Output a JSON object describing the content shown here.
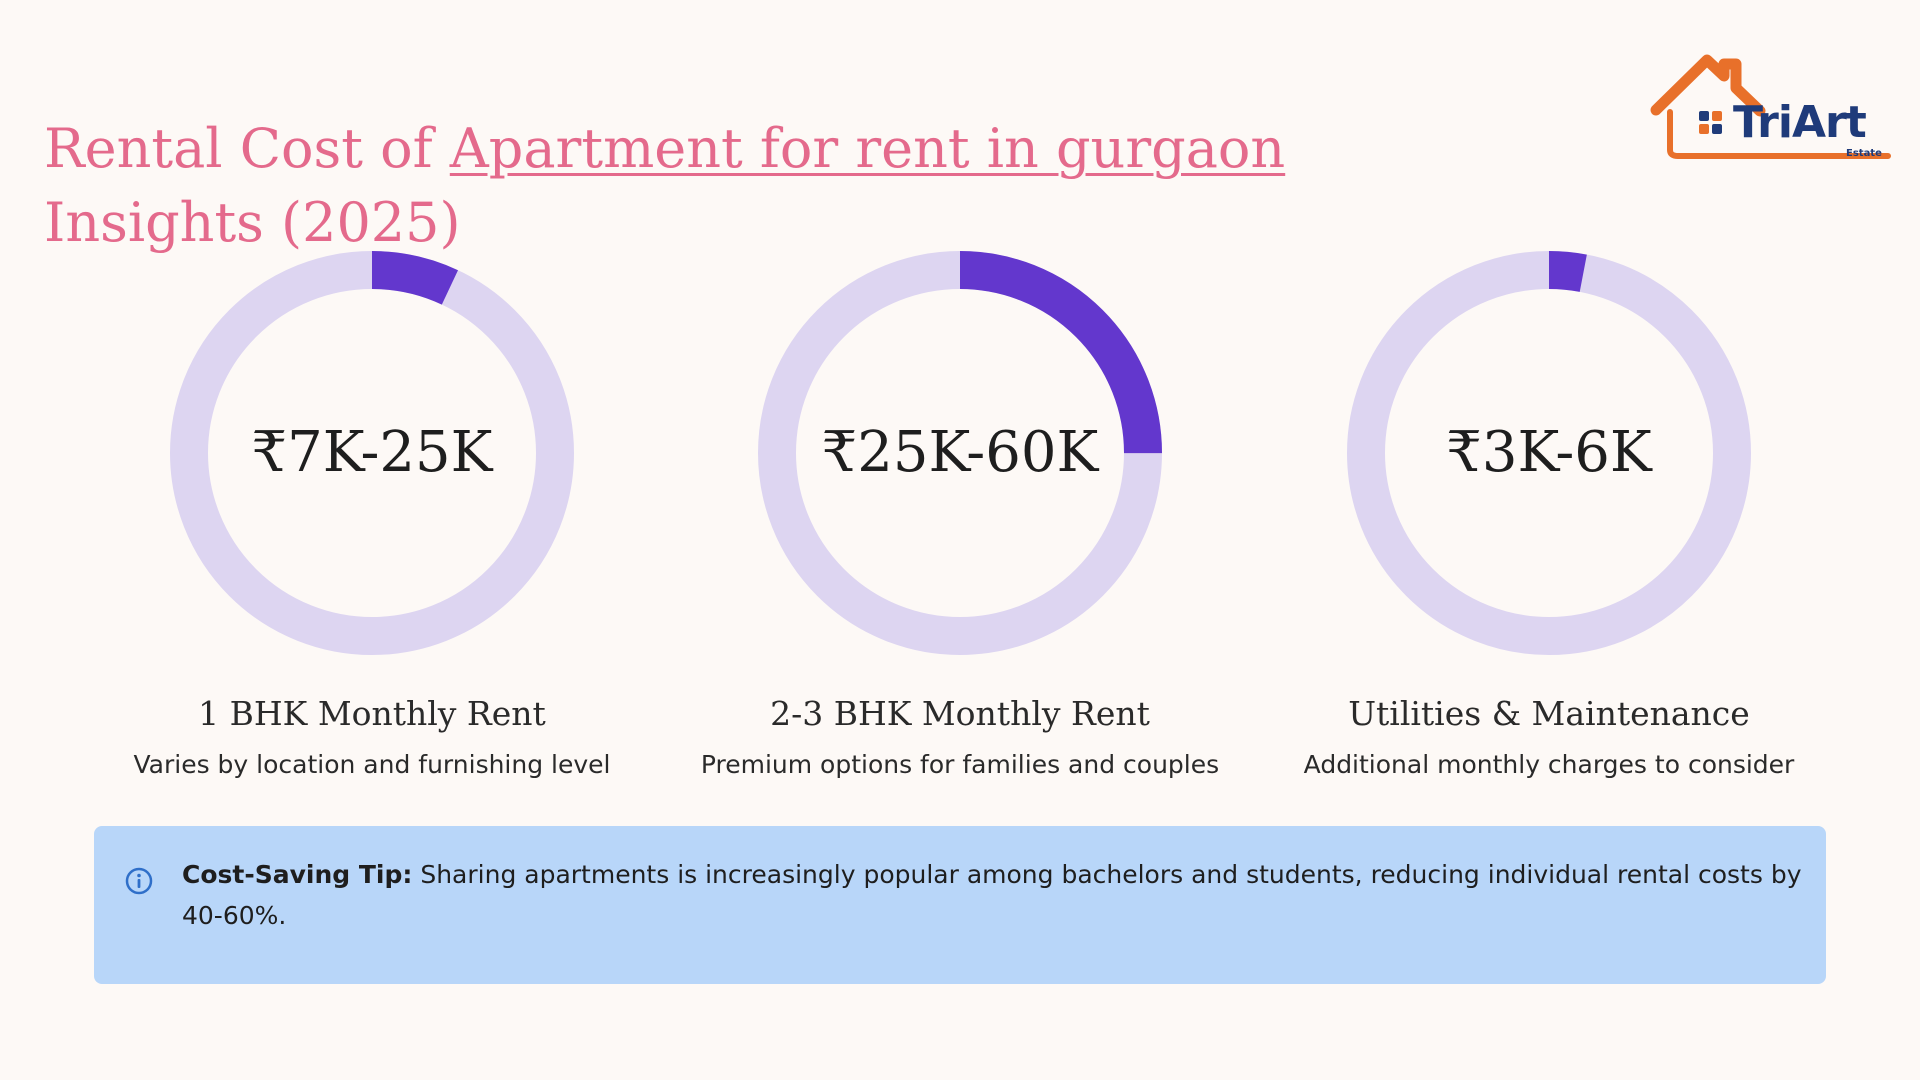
{
  "header": {
    "title_prefix": "Rental Cost of ",
    "title_link": "Apartment for rent in gurgaon ",
    "title_suffix": "Insights (2025)"
  },
  "logo": {
    "name": "TriArt",
    "subtitle": "Estate",
    "icon": "house-icon"
  },
  "colors": {
    "ring_track": "#ddd5f1",
    "ring_fill": "#6337cd",
    "title": "#e46a8c",
    "tip_background": "#b8d6f9",
    "logo_roof": "#e8702a",
    "logo_text": "#1f3b7a"
  },
  "stats": [
    {
      "value": "₹7K-25K",
      "label": "1 BHK Monthly Rent",
      "description": "Varies by location and furnishing level",
      "progress": 0.07
    },
    {
      "value": "₹25K-60K",
      "label": "2-3 BHK Monthly Rent",
      "description": "Premium options for families and couples",
      "progress": 0.25
    },
    {
      "value": "₹3K-6K",
      "label": "Utilities & Maintenance",
      "description": "Additional monthly charges to consider",
      "progress": 0.03
    }
  ],
  "tip": {
    "icon": "info-icon",
    "label": "Cost-Saving Tip:",
    "text": " Sharing apartments is increasingly popular among bachelors and students, reducing individual rental costs by 40-60%."
  }
}
